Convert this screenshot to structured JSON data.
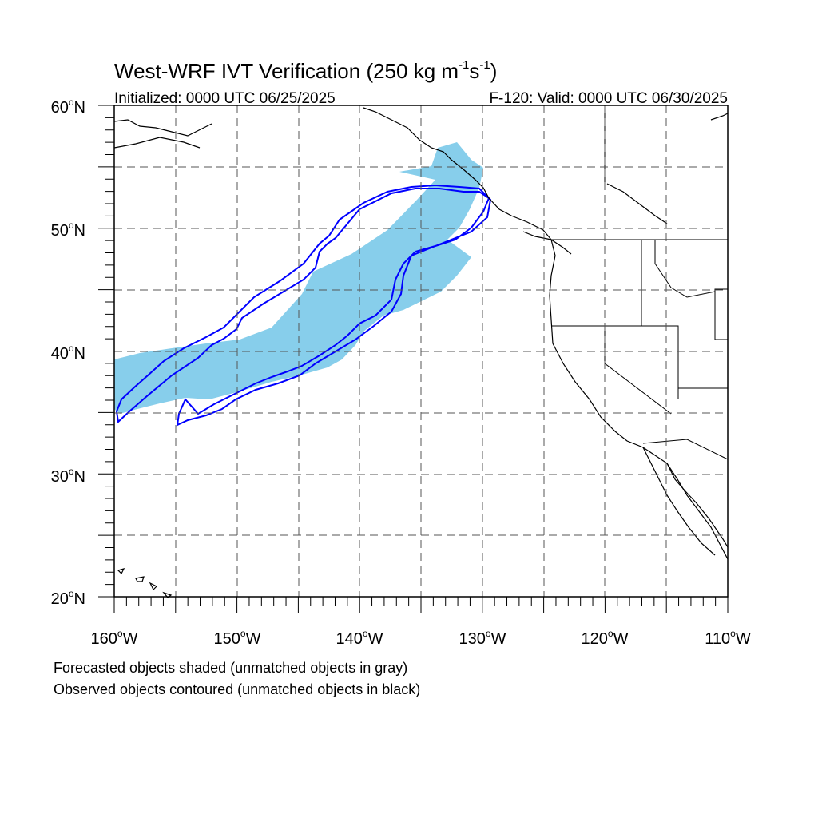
{
  "title": "West-WRF IVT Verification (250 kg m",
  "title_sup1": "-1",
  "title_mid": "s",
  "title_sup2": "-1",
  "title_end": ")",
  "initialized": "Initialized: 0000 UTC 06/25/2025",
  "valid": "F-120: Valid: 0000 UTC 06/30/2025",
  "lat_labels": [
    "60",
    "50",
    "40",
    "30",
    "20"
  ],
  "lat_suffix": "N",
  "lon_labels": [
    "160",
    "150",
    "140",
    "130",
    "120",
    "110"
  ],
  "lon_suffix": "W",
  "degree_symbol": "o",
  "footnotes": [
    "Forecasted objects shaded (unmatched objects in gray)",
    "Observed objects contoured (unmatched objects in black)"
  ],
  "colors": {
    "forecast_fill": "#87ceeb",
    "observed_contour": "#0000ff",
    "coast": "#000000",
    "grid": "#555555"
  },
  "map": {
    "projection": "cylindrical equidistant",
    "lon_range": [
      -160,
      -110
    ],
    "lat_range": [
      20,
      60
    ],
    "gridline_interval_deg": 5
  }
}
